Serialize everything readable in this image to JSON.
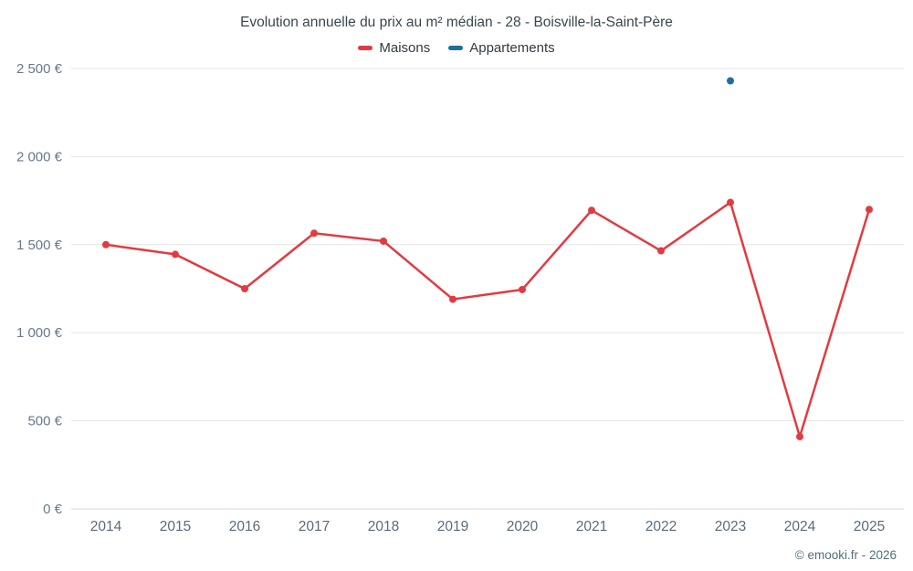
{
  "chart_data": {
    "type": "line",
    "title": "Evolution annuelle du prix au m² médian - 28 - Boisville-la-Saint-Père",
    "categories": [
      "2014",
      "2015",
      "2016",
      "2017",
      "2018",
      "2019",
      "2020",
      "2021",
      "2022",
      "2023",
      "2024",
      "2025"
    ],
    "series": [
      {
        "name": "Maisons",
        "color": "#e13b41",
        "marker": "circle",
        "values": [
          1500,
          1445,
          1250,
          1565,
          1520,
          1190,
          1245,
          1695,
          1465,
          1740,
          410,
          1700
        ]
      },
      {
        "name": "Appartements",
        "color": "#1d6f9e",
        "marker": "circle",
        "values": [
          null,
          null,
          null,
          null,
          null,
          null,
          null,
          null,
          null,
          2430,
          null,
          null
        ]
      }
    ],
    "xlabel": "",
    "ylabel": "",
    "ylim": [
      0,
      2500
    ],
    "ytick_step": 500,
    "ytick_labels": [
      "0 €",
      "500 €",
      "1 000 €",
      "1 500 €",
      "2 000 €",
      "2 500 €"
    ],
    "legend_position": "top",
    "grid": "horizontal",
    "grid_color": "#e6e6e6",
    "axis_line_color": "#cfd8dc",
    "axis_label_color": "#66788a"
  },
  "footer": {
    "copyright": "© emooki.fr - 2026"
  }
}
